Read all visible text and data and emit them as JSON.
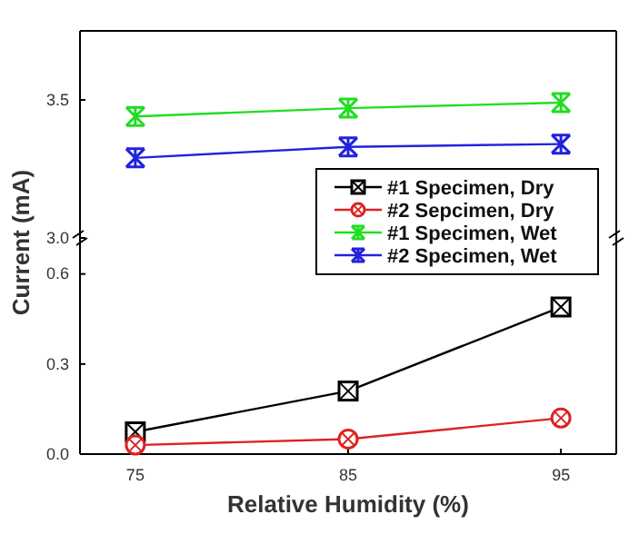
{
  "chart_data": [
    {
      "type": "line",
      "x": [
        75,
        85,
        95
      ],
      "xlim": [
        72.4,
        97.6
      ],
      "ylim": [
        3.0,
        3.75
      ],
      "yticks": [
        {
          "value": 3.0,
          "label": "3.0"
        },
        3.5
      ],
      "tick_labels": "y",
      "legend": "bottom right",
      "series": [
        {
          "name": "#1 Specimen, Wet",
          "color": "#22dd22",
          "marker": "cross",
          "values": [
            3.44,
            3.47,
            3.49
          ]
        },
        {
          "name": "#2 Specimen, Wet",
          "color": "#2222dd",
          "marker": "cross",
          "values": [
            3.29,
            3.33,
            3.34
          ]
        }
      ]
    },
    {
      "type": "line",
      "x": [
        75,
        85,
        95
      ],
      "xlim": [
        72.4,
        97.6
      ],
      "xticks": [
        75,
        85,
        95
      ],
      "ylim": [
        0,
        0.72
      ],
      "yticks": [
        {
          "value": 0,
          "label": "0.0"
        },
        0.3,
        0.6
      ],
      "xlabel": "Relative Humidity (%)",
      "ylabel": "Current (mA)",
      "legend": "top right",
      "series": [
        {
          "name": "#1 Specimen, Dry",
          "color": "#000000",
          "marker": "square",
          "values": [
            0.074,
            0.21,
            0.49
          ]
        },
        {
          "name": "#2 Sepcimen, Dry",
          "color": "#dd2222",
          "marker": "circle",
          "values": [
            0.03,
            0.05,
            0.12
          ]
        }
      ]
    }
  ]
}
